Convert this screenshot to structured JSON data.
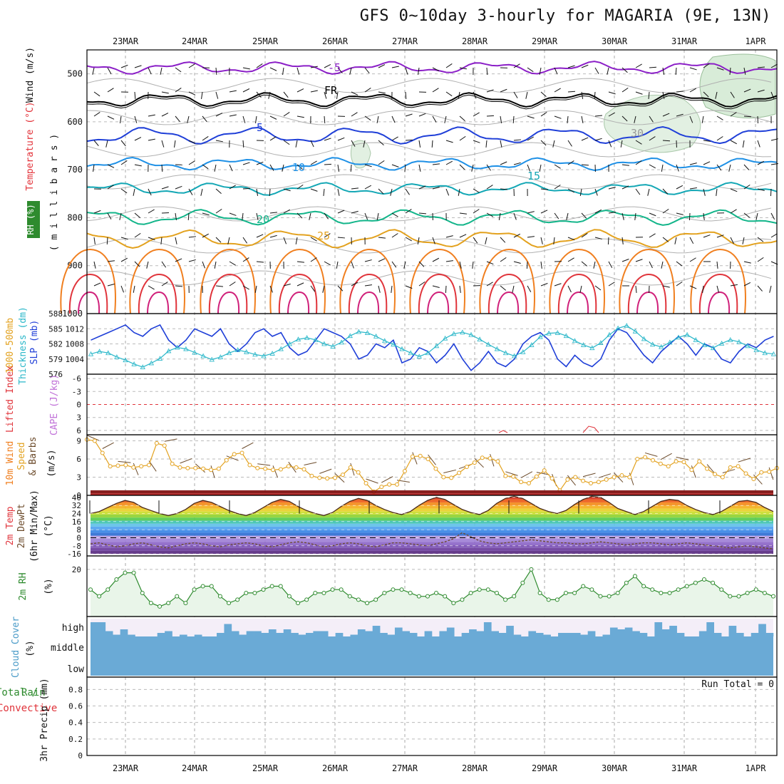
{
  "title": "GFS 0~10day 3-hourly for MAGARIA (9E, 13N)",
  "dates": [
    "23MAR",
    "24MAR",
    "25MAR",
    "26MAR",
    "27MAR",
    "28MAR",
    "29MAR",
    "30MAR",
    "31MAR",
    "1APR"
  ],
  "panels": {
    "upper_air": {
      "labels": [
        "RH (%)",
        "Temperature (°C)",
        "Wind (m/s)",
        "( m i l l i b a r s )"
      ],
      "pressure_ticks": [
        "500",
        "600",
        "700",
        "800",
        "900",
        "1000"
      ],
      "contour_labels": [
        "-5",
        "FR",
        "5",
        "10",
        "15",
        "20",
        "25",
        "30"
      ]
    },
    "slp": {
      "labels": [
        "1000-500mb",
        "Thickness (dm)",
        "SLP (mb)"
      ],
      "thickness_ticks": [
        "588",
        "585",
        "582",
        "579",
        "576"
      ],
      "slp_ticks": [
        "1012",
        "1008",
        "1004"
      ]
    },
    "stability": {
      "labels": [
        "Lifted Index",
        "CAPE (J/kg)"
      ],
      "ticks": [
        "-6",
        "-3",
        "0",
        "3",
        "6"
      ]
    },
    "wind10m": {
      "labels": [
        "10m Wind",
        "Speed",
        "& Barbs",
        "(m/s)"
      ],
      "ticks": [
        "9",
        "6",
        "3",
        "0"
      ]
    },
    "temp2m": {
      "labels": [
        "2m Temp",
        "2m DewPt",
        "(6hr Min/Max)",
        "(°C)"
      ],
      "ticks": [
        "40",
        "32",
        "24",
        "16",
        "8",
        "0",
        "-8",
        "-16"
      ]
    },
    "rh2m": {
      "labels": [
        "2m RH",
        "(%)"
      ],
      "ticks": [
        "20"
      ]
    },
    "cloud": {
      "labels": [
        "Cloud Cover",
        "(%)"
      ],
      "levels": [
        "high",
        "middle",
        "low"
      ]
    },
    "precip": {
      "labels": [
        "Total / Rain",
        "Convective",
        "3hr Precip (mm)"
      ],
      "ticks": [
        "0.8",
        "0.6",
        "0.4",
        "0.2",
        "0"
      ],
      "run_total": "Run Total = 0"
    }
  },
  "chart_data": [
    {
      "type": "line",
      "name": "SLP and thickness",
      "x_unit": "3-hourly steps from 22MAR 12Z",
      "series": [
        {
          "name": "SLP (mb)",
          "color": "#1f3fd8",
          "values": [
            1009,
            1010,
            1011,
            1012,
            1013,
            1011,
            1010,
            1012,
            1013,
            1009,
            1007,
            1009,
            1012,
            1011,
            1010,
            1012,
            1008,
            1006,
            1008,
            1011,
            1012,
            1010,
            1011,
            1007,
            1005,
            1006,
            1009,
            1012,
            1011,
            1010,
            1008,
            1004,
            1005,
            1008,
            1007,
            1009,
            1003,
            1004,
            1007,
            1006,
            1003,
            1005,
            1008,
            1004,
            1001,
            1003,
            1006,
            1003,
            1002,
            1004,
            1008,
            1010,
            1011,
            1009,
            1004,
            1002,
            1005,
            1003,
            1002,
            1004,
            1009,
            1012,
            1011,
            1008,
            1005,
            1003,
            1006,
            1008,
            1010,
            1008,
            1005,
            1008,
            1007,
            1004,
            1003,
            1006,
            1008,
            1007,
            1009,
            1010
          ]
        },
        {
          "name": "1000-500mb Thickness (dm)",
          "color": "#2ab7c9",
          "values": [
            580.0,
            580.5,
            580.2,
            579.4,
            578.8,
            578.0,
            577.4,
            578.2,
            579.1,
            580.6,
            581.3,
            581.0,
            580.3,
            579.6,
            578.9,
            579.4,
            580.2,
            580.8,
            580.4,
            579.9,
            579.6,
            580.1,
            581.0,
            582.0,
            582.9,
            583.2,
            582.8,
            582.0,
            581.5,
            582.3,
            583.6,
            584.4,
            584.2,
            583.5,
            582.6,
            581.9,
            581.0,
            580.2,
            579.5,
            580.2,
            581.6,
            583.1,
            584.0,
            584.3,
            583.8,
            582.9,
            581.9,
            581.0,
            580.2,
            579.6,
            580.4,
            581.8,
            583.4,
            584.1,
            584.2,
            583.6,
            582.6,
            581.8,
            581.2,
            582.2,
            583.8,
            585.1,
            585.6,
            584.5,
            583.0,
            581.9,
            581.4,
            582.3,
            583.3,
            583.8,
            582.8,
            581.8,
            581.2,
            582.1,
            582.8,
            582.4,
            581.6,
            580.8,
            580.2,
            580.0
          ]
        }
      ],
      "y_ranges": {
        "thickness_dm": [
          576,
          588
        ],
        "slp_mb": [
          1000,
          1016
        ]
      }
    },
    {
      "type": "line",
      "name": "10m wind speed",
      "ylim": [
        0,
        10
      ],
      "values": [
        9.2,
        9.0,
        7.0,
        4.8,
        4.9,
        5.0,
        4.6,
        4.8,
        5.0,
        8.6,
        8.2,
        5.2,
        4.6,
        4.5,
        4.5,
        4.4,
        4.2,
        4.4,
        5.8,
        6.8,
        7.0,
        5.0,
        4.5,
        4.4,
        4.2,
        4.3,
        4.8,
        4.6,
        4.3,
        3.2,
        2.9,
        2.8,
        2.9,
        3.4,
        4.6,
        3.8,
        2.0,
        0.6,
        1.4,
        1.8,
        1.8,
        4.0,
        6.4,
        6.5,
        6.0,
        4.4,
        3.0,
        2.9,
        3.7,
        4.7,
        5.4,
        6.2,
        6.1,
        5.6,
        3.2,
        3.1,
        2.2,
        2.0,
        3.1,
        4.1,
        2.8,
        0.8,
        2.6,
        3.0,
        2.4,
        2.0,
        2.2,
        2.6,
        3.0,
        3.3,
        3.0,
        6.0,
        6.3,
        5.8,
        5.2,
        4.8,
        5.6,
        5.5,
        4.2,
        5.6,
        4.4,
        3.5,
        3.0,
        4.6,
        4.8,
        3.6,
        2.7,
        3.8,
        3.9,
        4.5
      ]
    },
    {
      "type": "line",
      "name": "2m RH",
      "values": [
        14,
        12,
        14,
        17,
        19,
        19,
        13,
        10,
        9,
        10,
        12,
        10,
        14,
        15,
        15,
        12,
        10,
        11,
        13,
        13,
        14,
        15,
        15,
        12,
        10,
        11,
        13,
        13,
        14,
        14,
        12,
        11,
        10,
        11,
        13,
        14,
        14,
        13,
        12,
        12,
        13,
        12,
        10,
        11,
        13,
        14,
        14,
        13,
        11,
        12,
        16,
        20,
        13,
        11,
        11,
        13,
        13,
        15,
        14,
        12,
        12,
        13,
        16,
        18,
        15,
        14,
        13,
        13,
        14,
        15,
        16,
        17,
        16,
        14,
        12,
        12,
        13,
        14,
        13,
        12
      ]
    },
    {
      "type": "area",
      "name": "2m temperature",
      "ylim": [
        -16,
        40
      ],
      "series": [
        {
          "name": "2m Temp",
          "values": [
            24,
            26,
            30,
            34,
            37,
            35,
            30,
            27,
            24,
            22,
            24,
            28,
            34,
            37,
            35,
            31,
            27,
            24,
            22,
            25,
            30,
            35,
            38,
            36,
            31,
            27,
            24,
            22,
            25,
            31,
            36,
            39,
            37,
            32,
            28,
            25,
            23,
            26,
            32,
            37,
            40,
            38,
            33,
            28,
            25,
            23,
            27,
            34,
            39,
            41,
            39,
            34,
            29,
            26,
            24,
            27,
            33,
            38,
            41,
            40,
            35,
            29,
            26,
            23,
            26,
            31,
            36,
            38,
            37,
            32,
            28,
            25,
            23,
            26,
            31,
            36,
            37,
            35,
            30,
            26
          ]
        },
        {
          "name": "2m DewPt",
          "values": [
            -6,
            -5,
            -7,
            -9,
            -8,
            -6,
            -5,
            -7,
            -9,
            -10,
            -8,
            -6,
            -5,
            -6,
            -8,
            -9,
            -7,
            -6,
            -5,
            -6,
            -8,
            -9,
            -7,
            -5,
            -4,
            -5,
            -7,
            -9,
            -8,
            -6,
            -5,
            -6,
            -8,
            -9,
            -7,
            -5,
            -5,
            -6,
            -7,
            -8,
            -6,
            -4,
            -1,
            5,
            1,
            -3,
            -5,
            -6,
            -5,
            -4,
            -3,
            -2,
            -3,
            -4,
            -5,
            -5,
            -6,
            -6,
            -5,
            -4,
            -5,
            -6,
            -7,
            -6,
            -5,
            -5,
            -6,
            -7,
            -6,
            -5,
            -6,
            -7,
            -8,
            -9,
            -10,
            -9,
            -8,
            -9,
            -10,
            -11
          ]
        }
      ]
    },
    {
      "type": "area",
      "name": "high cloud cover",
      "values": [
        80,
        80,
        30,
        10,
        40,
        10,
        0,
        0,
        0,
        20,
        30,
        0,
        10,
        0,
        10,
        0,
        0,
        20,
        70,
        30,
        10,
        30,
        30,
        20,
        40,
        20,
        40,
        20,
        10,
        20,
        30,
        30,
        0,
        20,
        0,
        10,
        40,
        30,
        60,
        20,
        10,
        50,
        30,
        20,
        0,
        30,
        0,
        30,
        50,
        0,
        20,
        40,
        30,
        80,
        30,
        20,
        60,
        10,
        0,
        30,
        20,
        10,
        0,
        20,
        20,
        20,
        10,
        30,
        0,
        10,
        50,
        40,
        50,
        30,
        20,
        0,
        80,
        40,
        60,
        20,
        0,
        0,
        30,
        80,
        20,
        0,
        60,
        20,
        0,
        20,
        70,
        20
      ]
    }
  ]
}
